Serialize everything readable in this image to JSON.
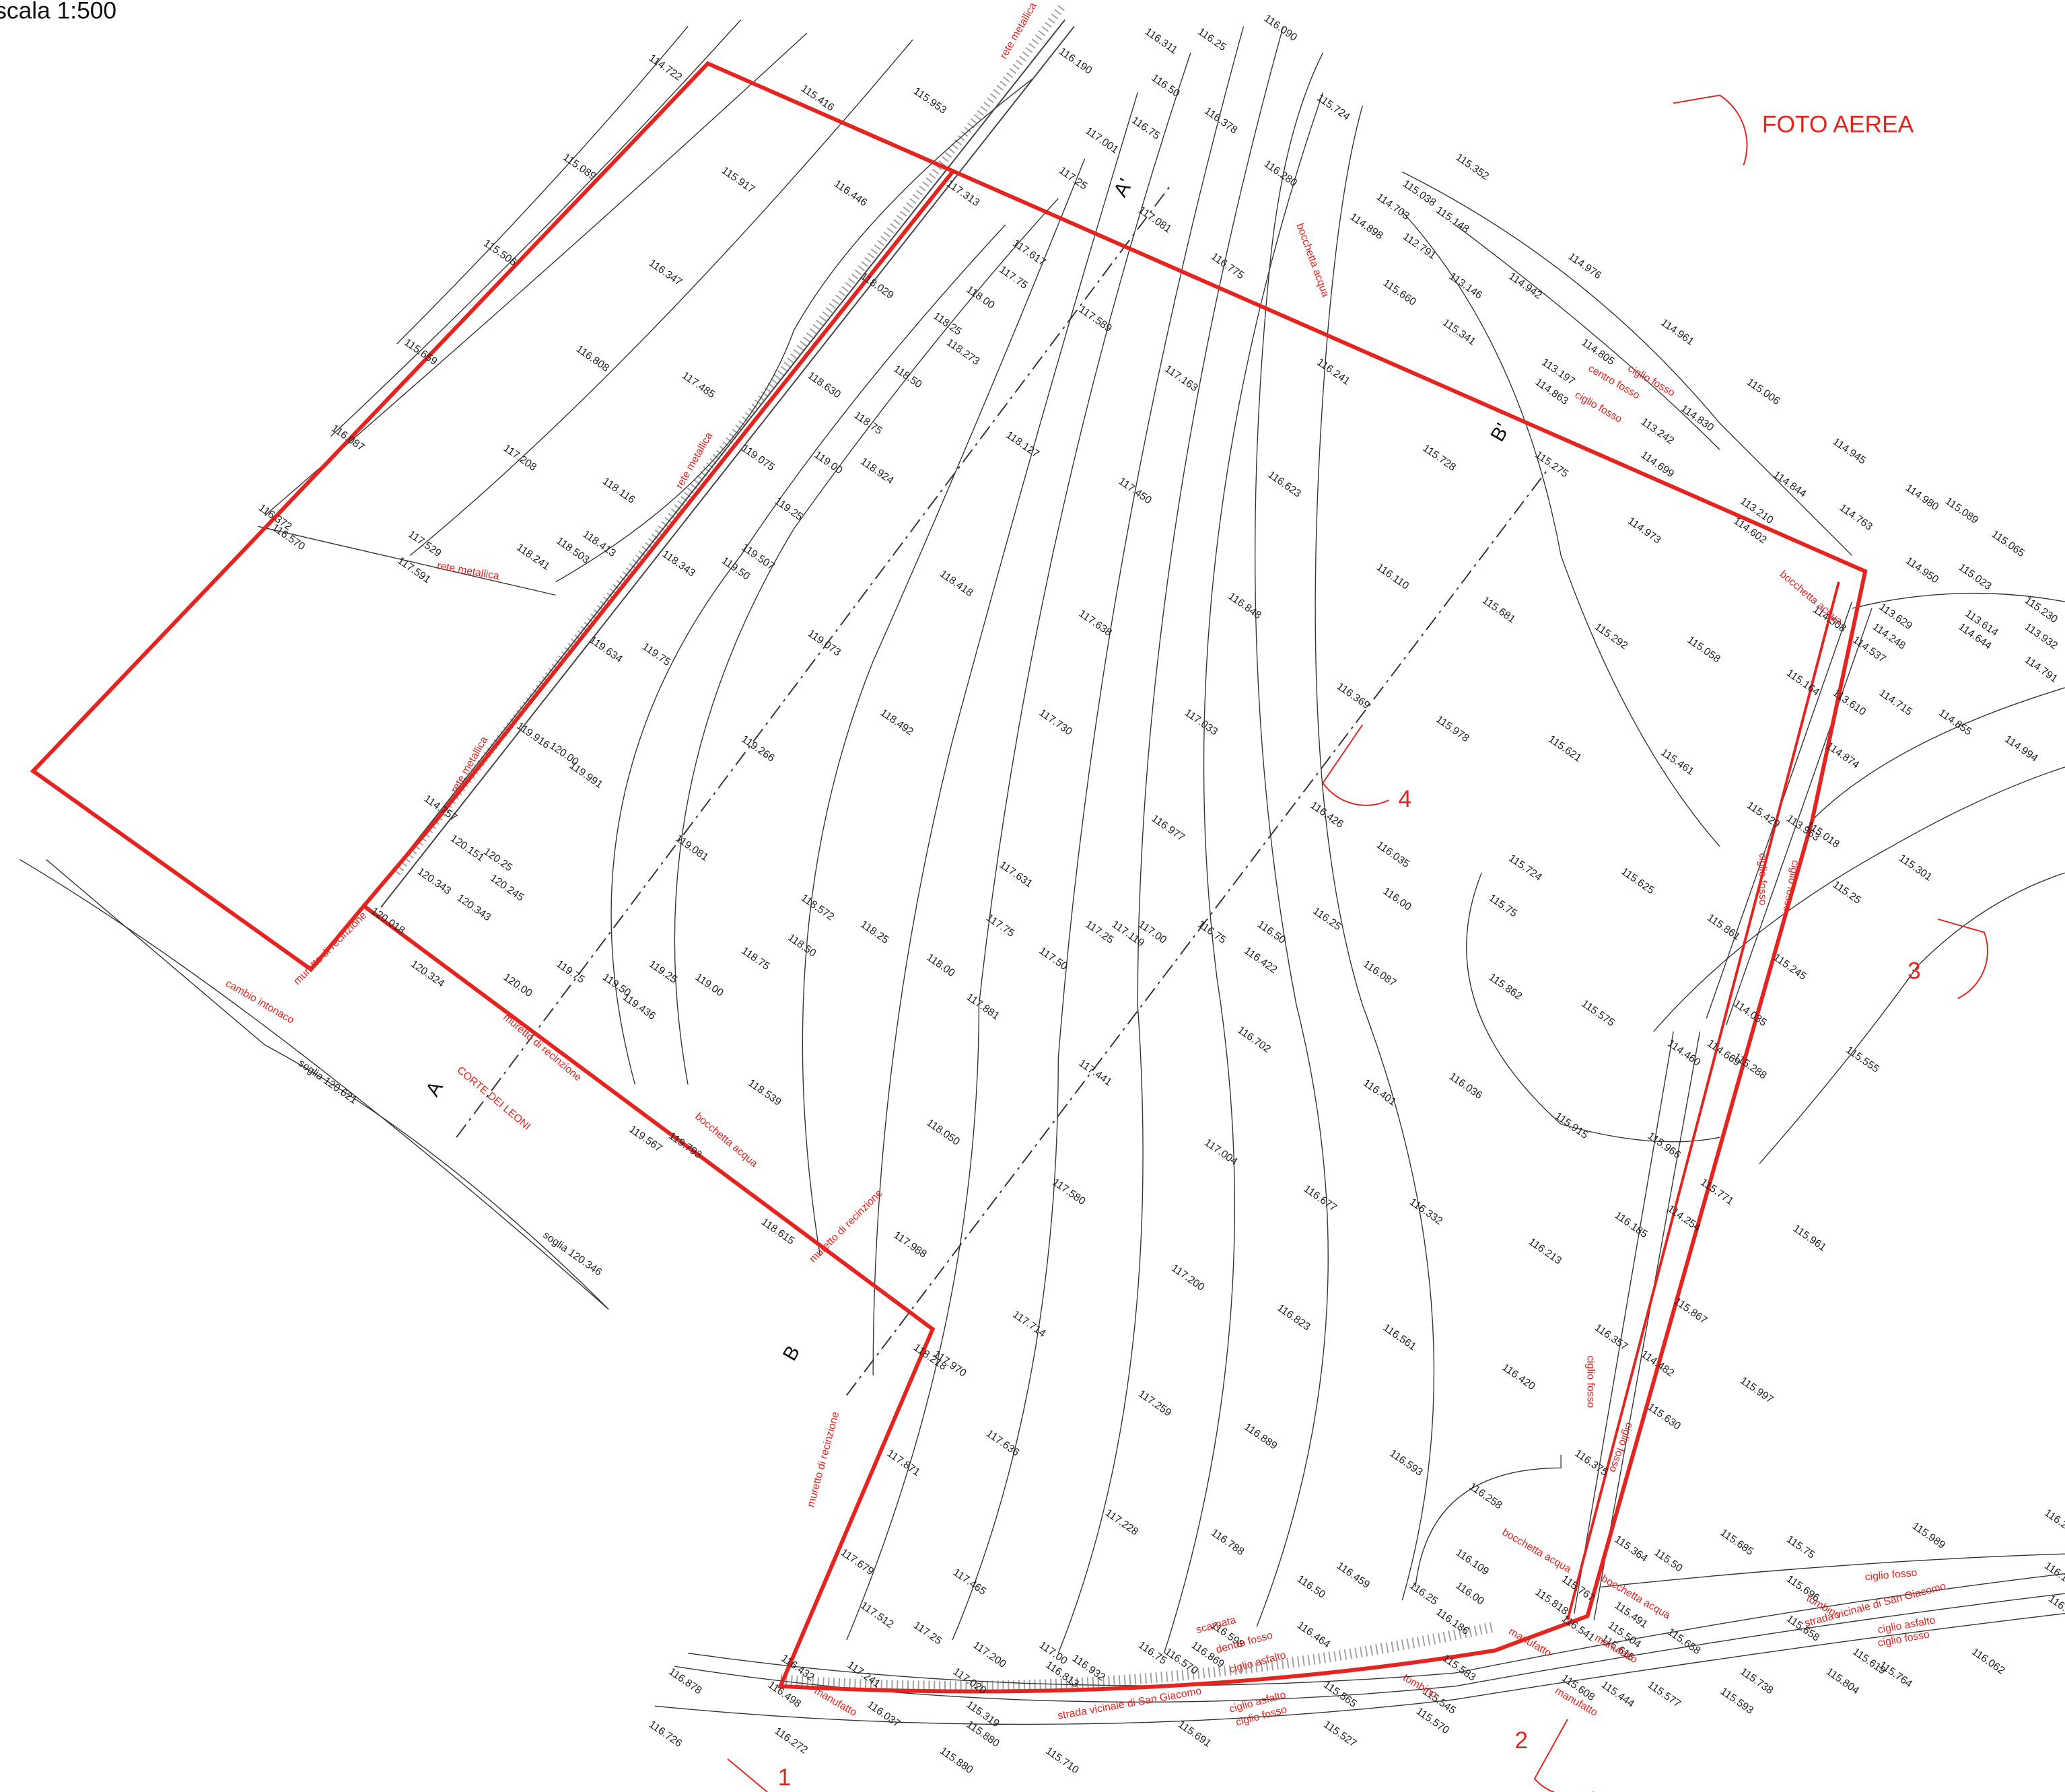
{
  "scale": "scala 1:500",
  "photo_label": "FOTO AEREA",
  "viewpoints": [
    "1",
    "2",
    "3",
    "4"
  ],
  "section_labels": [
    "A",
    "A'",
    "B",
    "B'"
  ],
  "elevations": [
    "114.722",
    "115.416",
    "115.953",
    "116.190",
    "116.311",
    "116.25",
    "116.090",
    "115.089",
    "115.917",
    "116.446",
    "116.50",
    "116.378",
    "115.724",
    "115.352",
    "115.506",
    "116.347",
    "117.313",
    "117.001",
    "116.75",
    "116.280",
    "115.038",
    "115.148",
    "114.703",
    "114.898",
    "114.976",
    "115.659",
    "116.808",
    "118.029",
    "117.617",
    "117.75",
    "117.25",
    "117.081",
    "116.775",
    "112.791",
    "113.146",
    "114.942",
    "114.961",
    "116.087",
    "117.208",
    "117.485",
    "118.630",
    "118.00",
    "118.25",
    "118.273",
    "117.589",
    "115.660",
    "115.341",
    "114.805",
    "113.197",
    "114.863",
    "115.006",
    "116.372",
    "116.570",
    "117.591",
    "118.116",
    "118.50",
    "118.75",
    "119.075",
    "119.00",
    "118.924",
    "118.127",
    "117.163",
    "116.241",
    "114.830",
    "113.242",
    "114.945",
    "117.529",
    "118.241",
    "118.503",
    "118.413",
    "118.343",
    "119.25",
    "119.50",
    "119.507",
    "117.450",
    "116.623",
    "115.728",
    "115.275",
    "114.699",
    "114.844",
    "114.980",
    "115.089",
    "115.065",
    "113.210",
    "114.602",
    "114.973",
    "114.763",
    "119.634",
    "119.75",
    "118.418",
    "117.638",
    "116.848",
    "116.110",
    "115.681",
    "115.292",
    "115.058",
    "114.950",
    "115.023",
    "115.230",
    "113.629",
    "113.614",
    "113.932",
    "114.248",
    "114.644",
    "114.791",
    "114.508",
    "114.537",
    "115.164",
    "113.610",
    "114.715",
    "119.916",
    "120.00",
    "119.991",
    "119.073",
    "119.266",
    "118.492",
    "117.730",
    "117.033",
    "116.369",
    "115.978",
    "115.621",
    "115.461",
    "114.855",
    "114.994",
    "114.874",
    "114.757",
    "120.151",
    "120.25",
    "120.245",
    "120.343",
    "120.343",
    "119.081",
    "118.572",
    "118.50",
    "118.25",
    "117.631",
    "117.75",
    "117.50",
    "117.25",
    "116.977",
    "117.00",
    "117.119",
    "116.75",
    "116.426",
    "116.035",
    "115.724",
    "115.625",
    "115.429",
    "113.963",
    "115.018",
    "115.25",
    "115.301",
    "115.861",
    "115.245",
    "120.018",
    "120.324",
    "120.00",
    "119.75",
    "119.50",
    "119.436",
    "119.25",
    "119.00",
    "118.75",
    "118.00",
    "117.881",
    "116.50",
    "116.422",
    "116.25",
    "116.00",
    "115.75",
    "116.087",
    "115.862",
    "115.575",
    "114.035",
    "115.288",
    "115.555",
    "114.460",
    "114.669",
    "117.441",
    "116.702",
    "116.401",
    "116.036",
    "115.915",
    "115.966",
    "115.771",
    "118.539",
    "118.050",
    "117.004",
    "119.567",
    "119.793",
    "118.615",
    "117.580",
    "116.677",
    "116.332",
    "116.213",
    "116.185",
    "114.254",
    "115.961",
    "117.988",
    "117.200",
    "115.867",
    "117.970",
    "118.218",
    "117.714",
    "116.823",
    "116.561",
    "116.420",
    "116.357",
    "114.482",
    "115.997",
    "117.259",
    "115.630",
    "117.871",
    "117.636",
    "116.889",
    "116.593",
    "116.375",
    "117.228",
    "116.258",
    "117.679",
    "116.788",
    "117.465",
    "116.50",
    "116.459",
    "116.109",
    "116.25",
    "116.00",
    "116.186",
    "115.767",
    "115.818",
    "115.364",
    "115.50",
    "115.491",
    "115.504",
    "115.658",
    "115.685",
    "115.75",
    "115.989",
    "116.25",
    "116.18",
    "115.696",
    "115.658",
    "115.619",
    "115.764",
    "115.804",
    "116.062",
    "116.14",
    "117.512",
    "117.25",
    "117.200",
    "117.00",
    "116.932",
    "116.75",
    "116.869",
    "116.570",
    "116.598",
    "116.464",
    "116.541",
    "115.615",
    "117.241",
    "117.020",
    "116.813",
    "116.878",
    "116.498",
    "116.432",
    "116.037",
    "115.319",
    "115.880",
    "115.583",
    "115.565",
    "115.545",
    "115.570",
    "115.527",
    "115.691",
    "115.710",
    "115.880",
    "116.272",
    "116.726",
    "115.608",
    "115.444",
    "115.577",
    "115.738",
    "115.593",
    "soglia 120.621",
    "soglia 120.346"
  ],
  "notes": [
    "rete metallica",
    "rete metallica",
    "rete metallica",
    "rete metallica",
    "bocchetta acqua",
    "bocchetta acqua",
    "bocchetta acqua",
    "bocchetta acqua",
    "bocchetta acqua",
    "ciglio fosso",
    "centro fosso",
    "ciglio fosso",
    "ciglio fosso",
    "ciglio fosso",
    "ciglio fosso",
    "ciglio fosso",
    "muretto di recinzione",
    "muretto di recinzione",
    "muretto di recinzione",
    "muretto di recinzione",
    "CORTE DEI LEONI",
    "cambio intonaco",
    "manufatto",
    "manufatto",
    "manufatto",
    "manufatto",
    "strada vicinale di San Giacomo",
    "strada vicinale di San Giacomo",
    "ciglio asfalto",
    "ciglio asfalto",
    "ciglio asfalto",
    "ciglio fosso",
    "ciglio fosso",
    "ciglio fosso",
    "dentro fosso",
    "scarpata",
    "tombino",
    "tombino"
  ]
}
